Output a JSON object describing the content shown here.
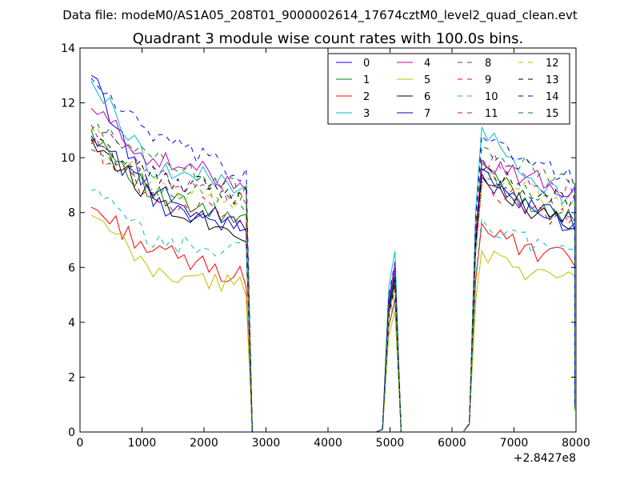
{
  "figure": {
    "suptitle": "Data file: modeM0/AS1A05_208T01_9000002614_17674cztM0_level2_quad_clean.evt",
    "offset_label": "+2.8427e8"
  },
  "chart_data": {
    "type": "line",
    "title": "Quadrant 3 module wise count rates with 100.0s bins.",
    "xlabel": "",
    "ylabel": "",
    "xlim": [
      0,
      8000
    ],
    "ylim": [
      0,
      14
    ],
    "xticks": [
      "0",
      "1000",
      "2000",
      "3000",
      "4000",
      "5000",
      "6000",
      "7000",
      "8000"
    ],
    "yticks": [
      "0",
      "2",
      "4",
      "6",
      "8",
      "10",
      "12",
      "14"
    ],
    "x_offset": "+2.8427e8",
    "grid": false,
    "legend_position": "top-right",
    "legend_columns": 4,
    "segments": [
      {
        "x_start": 180,
        "x_end": 2680,
        "step": 100
      },
      {
        "x_start": 4880,
        "x_end": 5180,
        "step": 100
      },
      {
        "x_start": 6280,
        "x_end": 7980,
        "step": 100
      }
    ],
    "series": [
      {
        "name": "0",
        "color": "#0000ff",
        "dash": "solid",
        "seg1": [
          13.0,
          8.4,
          7.4
        ],
        "peak2": 5.9,
        "seg3": [
          9.6,
          8.0,
          7.6
        ]
      },
      {
        "name": "1",
        "color": "#008000",
        "dash": "solid",
        "seg1": [
          11.0,
          8.6,
          7.6
        ],
        "peak2": 5.4,
        "seg3": [
          9.8,
          8.3,
          7.9
        ]
      },
      {
        "name": "2",
        "color": "#ff0000",
        "dash": "solid",
        "seg1": [
          8.2,
          6.6,
          5.6
        ],
        "peak2": 4.8,
        "seg3": [
          7.6,
          6.5,
          6.3
        ]
      },
      {
        "name": "3",
        "color": "#00bfbf",
        "dash": "solid",
        "seg1": [
          12.8,
          9.6,
          9.0
        ],
        "peak2": 6.6,
        "seg3": [
          11.1,
          9.1,
          8.5
        ]
      },
      {
        "name": "4",
        "color": "#bf00bf",
        "dash": "solid",
        "seg1": [
          11.8,
          9.9,
          9.1
        ],
        "peak2": 6.1,
        "seg3": [
          9.9,
          9.3,
          8.7
        ]
      },
      {
        "name": "5",
        "color": "#bfbf00",
        "dash": "solid",
        "seg1": [
          7.9,
          5.8,
          5.3
        ],
        "peak2": 4.4,
        "seg3": [
          6.6,
          5.9,
          5.4
        ]
      },
      {
        "name": "6",
        "color": "#000000",
        "dash": "solid",
        "seg1": [
          10.7,
          8.5,
          7.2
        ],
        "peak2": 5.6,
        "seg3": [
          9.4,
          8.1,
          7.3
        ]
      },
      {
        "name": "7",
        "color": "#0000bf",
        "dash": "solid",
        "seg1": [
          10.8,
          8.7,
          7.5
        ],
        "peak2": 5.7,
        "seg3": [
          9.3,
          8.2,
          7.7
        ]
      },
      {
        "name": "8",
        "color": "#008000",
        "dash": "dashed",
        "seg1": [
          10.3,
          9.0,
          8.3
        ],
        "peak2": 5.5,
        "seg3": [
          9.1,
          8.6,
          8.0
        ]
      },
      {
        "name": "9",
        "color": "#ff0000",
        "dash": "dashed",
        "seg1": [
          10.5,
          8.5,
          8.0
        ],
        "peak2": 5.2,
        "seg3": [
          9.0,
          8.2,
          7.6
        ]
      },
      {
        "name": "10",
        "color": "#00bfbf",
        "dash": "dashed",
        "seg1": [
          8.8,
          6.9,
          6.6
        ],
        "peak2": 4.9,
        "seg3": [
          7.8,
          6.9,
          6.7
        ]
      },
      {
        "name": "11",
        "color": "#bf00bf",
        "dash": "dashed",
        "seg1": [
          11.2,
          9.4,
          8.6
        ],
        "peak2": 5.9,
        "seg3": [
          10.0,
          9.1,
          8.8
        ]
      },
      {
        "name": "12",
        "color": "#bfbf00",
        "dash": "dashed",
        "seg1": [
          10.9,
          9.0,
          8.4
        ],
        "peak2": 5.3,
        "seg3": [
          9.3,
          8.8,
          8.2
        ]
      },
      {
        "name": "13",
        "color": "#000000",
        "dash": "dashed",
        "seg1": [
          10.6,
          9.3,
          8.6
        ],
        "peak2": 5.4,
        "seg3": [
          9.5,
          8.9,
          8.4
        ]
      },
      {
        "name": "14",
        "color": "#0000ff",
        "dash": "dashed",
        "seg1": [
          12.9,
          10.7,
          9.3
        ],
        "peak2": 6.2,
        "seg3": [
          10.8,
          10.0,
          9.2
        ]
      },
      {
        "name": "15",
        "color": "#008000",
        "dash": "dashed",
        "seg1": [
          11.0,
          10.1,
          8.7
        ],
        "peak2": 5.8,
        "seg3": [
          10.4,
          9.6,
          8.9
        ]
      }
    ]
  }
}
